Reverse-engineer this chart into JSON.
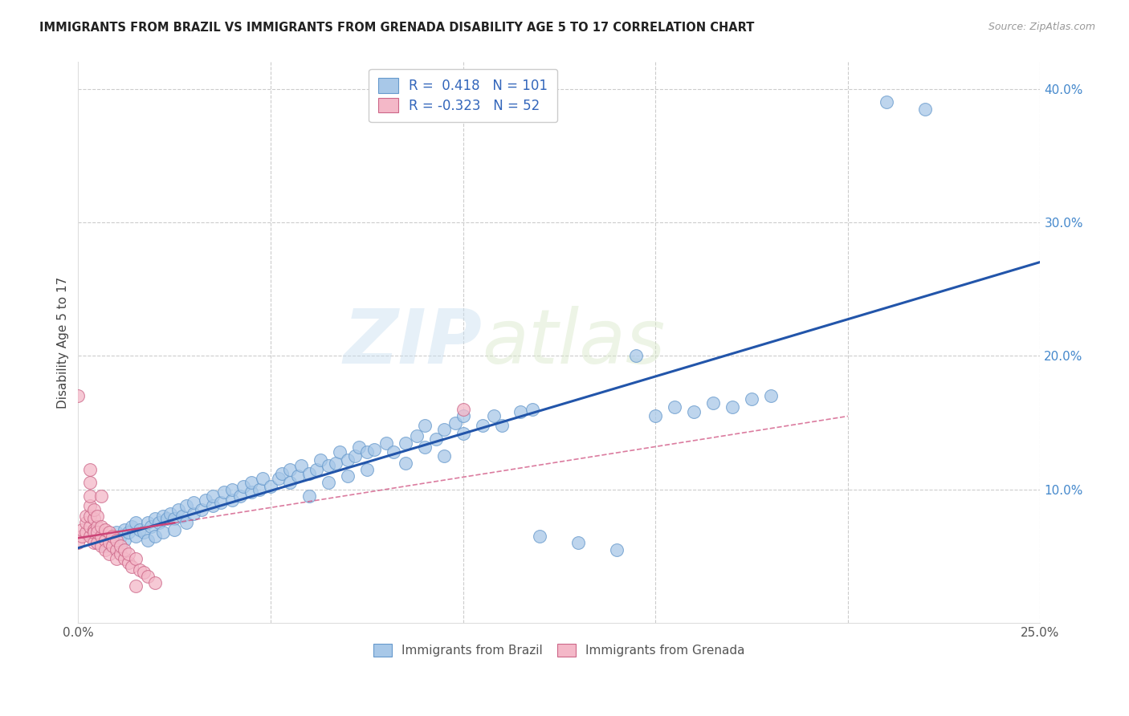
{
  "title": "IMMIGRANTS FROM BRAZIL VS IMMIGRANTS FROM GRENADA DISABILITY AGE 5 TO 17 CORRELATION CHART",
  "source": "Source: ZipAtlas.com",
  "ylabel": "Disability Age 5 to 17",
  "xlim": [
    0.0,
    0.25
  ],
  "ylim": [
    0.0,
    0.42
  ],
  "brazil_color": "#a8c8e8",
  "brazil_edge_color": "#6699cc",
  "grenada_color": "#f4b8c8",
  "grenada_edge_color": "#cc6688",
  "brazil_R": 0.418,
  "brazil_N": 101,
  "grenada_R": -0.323,
  "grenada_N": 52,
  "brazil_line_color": "#2255aa",
  "grenada_line_color": "#cc4477",
  "watermark_zip": "ZIP",
  "watermark_atlas": "atlas",
  "brazil_scatter": [
    [
      0.005,
      0.06
    ],
    [
      0.006,
      0.065
    ],
    [
      0.007,
      0.058
    ],
    [
      0.008,
      0.062
    ],
    [
      0.009,
      0.06
    ],
    [
      0.01,
      0.068
    ],
    [
      0.01,
      0.055
    ],
    [
      0.011,
      0.065
    ],
    [
      0.012,
      0.07
    ],
    [
      0.012,
      0.062
    ],
    [
      0.013,
      0.068
    ],
    [
      0.014,
      0.072
    ],
    [
      0.015,
      0.065
    ],
    [
      0.015,
      0.075
    ],
    [
      0.016,
      0.07
    ],
    [
      0.017,
      0.068
    ],
    [
      0.018,
      0.075
    ],
    [
      0.018,
      0.062
    ],
    [
      0.019,
      0.072
    ],
    [
      0.02,
      0.078
    ],
    [
      0.02,
      0.065
    ],
    [
      0.021,
      0.075
    ],
    [
      0.022,
      0.08
    ],
    [
      0.022,
      0.068
    ],
    [
      0.023,
      0.078
    ],
    [
      0.024,
      0.082
    ],
    [
      0.025,
      0.078
    ],
    [
      0.025,
      0.07
    ],
    [
      0.026,
      0.085
    ],
    [
      0.027,
      0.08
    ],
    [
      0.028,
      0.088
    ],
    [
      0.028,
      0.075
    ],
    [
      0.03,
      0.082
    ],
    [
      0.03,
      0.09
    ],
    [
      0.032,
      0.085
    ],
    [
      0.033,
      0.092
    ],
    [
      0.035,
      0.088
    ],
    [
      0.035,
      0.095
    ],
    [
      0.037,
      0.09
    ],
    [
      0.038,
      0.098
    ],
    [
      0.04,
      0.092
    ],
    [
      0.04,
      0.1
    ],
    [
      0.042,
      0.095
    ],
    [
      0.043,
      0.102
    ],
    [
      0.045,
      0.098
    ],
    [
      0.045,
      0.105
    ],
    [
      0.047,
      0.1
    ],
    [
      0.048,
      0.108
    ],
    [
      0.05,
      0.102
    ],
    [
      0.052,
      0.108
    ],
    [
      0.053,
      0.112
    ],
    [
      0.055,
      0.105
    ],
    [
      0.055,
      0.115
    ],
    [
      0.057,
      0.11
    ],
    [
      0.058,
      0.118
    ],
    [
      0.06,
      0.112
    ],
    [
      0.06,
      0.095
    ],
    [
      0.062,
      0.115
    ],
    [
      0.063,
      0.122
    ],
    [
      0.065,
      0.118
    ],
    [
      0.065,
      0.105
    ],
    [
      0.067,
      0.12
    ],
    [
      0.068,
      0.128
    ],
    [
      0.07,
      0.122
    ],
    [
      0.07,
      0.11
    ],
    [
      0.072,
      0.125
    ],
    [
      0.073,
      0.132
    ],
    [
      0.075,
      0.128
    ],
    [
      0.075,
      0.115
    ],
    [
      0.077,
      0.13
    ],
    [
      0.08,
      0.135
    ],
    [
      0.082,
      0.128
    ],
    [
      0.085,
      0.135
    ],
    [
      0.085,
      0.12
    ],
    [
      0.088,
      0.14
    ],
    [
      0.09,
      0.132
    ],
    [
      0.09,
      0.148
    ],
    [
      0.093,
      0.138
    ],
    [
      0.095,
      0.145
    ],
    [
      0.095,
      0.125
    ],
    [
      0.098,
      0.15
    ],
    [
      0.1,
      0.142
    ],
    [
      0.1,
      0.155
    ],
    [
      0.105,
      0.148
    ],
    [
      0.108,
      0.155
    ],
    [
      0.11,
      0.148
    ],
    [
      0.115,
      0.158
    ],
    [
      0.118,
      0.16
    ],
    [
      0.12,
      0.065
    ],
    [
      0.13,
      0.06
    ],
    [
      0.14,
      0.055
    ],
    [
      0.145,
      0.2
    ],
    [
      0.15,
      0.155
    ],
    [
      0.155,
      0.162
    ],
    [
      0.16,
      0.158
    ],
    [
      0.165,
      0.165
    ],
    [
      0.17,
      0.162
    ],
    [
      0.175,
      0.168
    ],
    [
      0.18,
      0.17
    ],
    [
      0.21,
      0.39
    ],
    [
      0.22,
      0.385
    ]
  ],
  "grenada_scatter": [
    [
      0.0,
      0.06
    ],
    [
      0.001,
      0.065
    ],
    [
      0.001,
      0.07
    ],
    [
      0.002,
      0.068
    ],
    [
      0.002,
      0.075
    ],
    [
      0.002,
      0.08
    ],
    [
      0.003,
      0.065
    ],
    [
      0.003,
      0.072
    ],
    [
      0.003,
      0.08
    ],
    [
      0.003,
      0.088
    ],
    [
      0.003,
      0.095
    ],
    [
      0.003,
      0.105
    ],
    [
      0.003,
      0.115
    ],
    [
      0.004,
      0.07
    ],
    [
      0.004,
      0.078
    ],
    [
      0.004,
      0.085
    ],
    [
      0.004,
      0.06
    ],
    [
      0.004,
      0.068
    ],
    [
      0.005,
      0.072
    ],
    [
      0.005,
      0.08
    ],
    [
      0.005,
      0.06
    ],
    [
      0.005,
      0.068
    ],
    [
      0.006,
      0.065
    ],
    [
      0.006,
      0.072
    ],
    [
      0.006,
      0.058
    ],
    [
      0.007,
      0.062
    ],
    [
      0.007,
      0.07
    ],
    [
      0.007,
      0.055
    ],
    [
      0.008,
      0.06
    ],
    [
      0.008,
      0.068
    ],
    [
      0.008,
      0.052
    ],
    [
      0.009,
      0.058
    ],
    [
      0.009,
      0.065
    ],
    [
      0.01,
      0.055
    ],
    [
      0.01,
      0.062
    ],
    [
      0.01,
      0.048
    ],
    [
      0.011,
      0.052
    ],
    [
      0.011,
      0.058
    ],
    [
      0.012,
      0.048
    ],
    [
      0.012,
      0.055
    ],
    [
      0.013,
      0.045
    ],
    [
      0.013,
      0.052
    ],
    [
      0.014,
      0.042
    ],
    [
      0.015,
      0.048
    ],
    [
      0.016,
      0.04
    ],
    [
      0.017,
      0.038
    ],
    [
      0.018,
      0.035
    ],
    [
      0.02,
      0.03
    ],
    [
      0.0,
      0.17
    ],
    [
      0.006,
      0.095
    ],
    [
      0.1,
      0.16
    ],
    [
      0.015,
      0.028
    ]
  ]
}
